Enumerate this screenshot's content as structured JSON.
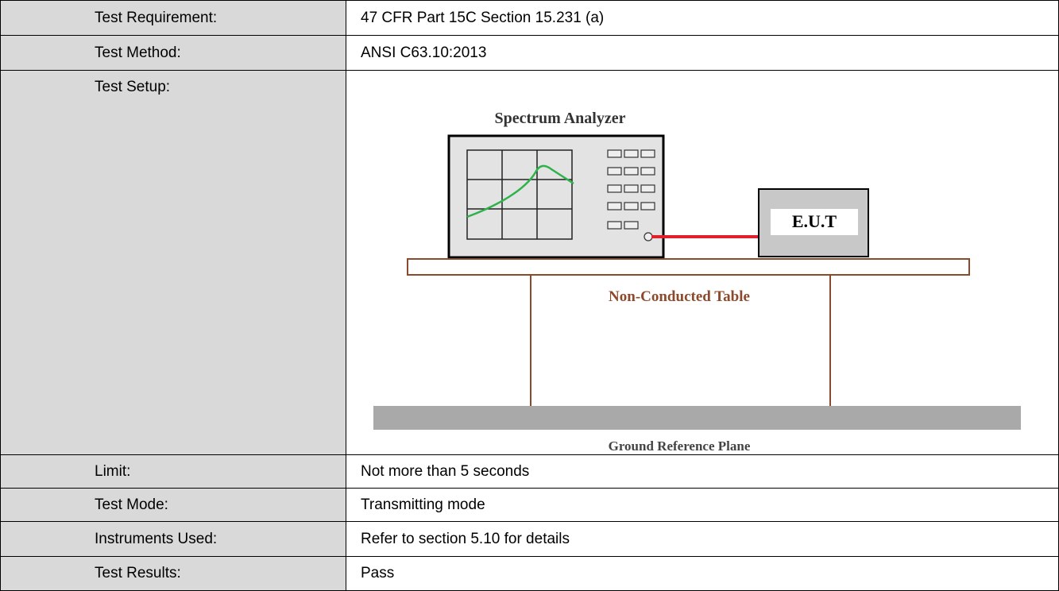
{
  "rows": [
    {
      "label": "Test Requirement:",
      "value": "47 CFR Part 15C Section 15.231 (a)"
    },
    {
      "label": "Test Method:",
      "value": "ANSI C63.10:2013"
    },
    {
      "label": "Test Setup:"
    },
    {
      "label": "Limit:",
      "value": "Not more than 5 seconds"
    },
    {
      "label": "Test Mode:",
      "value": "Transmitting mode"
    },
    {
      "label": "Instruments Used:",
      "value": "Refer to section 5.10 for details"
    },
    {
      "label": "Test Results:",
      "value": "Pass"
    }
  ],
  "diagram": {
    "analyzer_label": "Spectrum Analyzer",
    "eut_label": "E.U.T",
    "table_label": "Non-Conducted Table",
    "ground_label": "Ground Reference Plane"
  }
}
